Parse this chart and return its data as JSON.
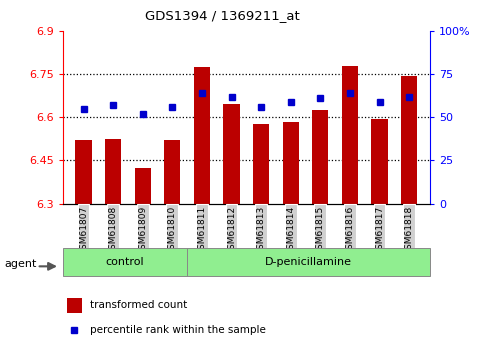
{
  "title": "GDS1394 / 1369211_at",
  "samples": [
    "GSM61807",
    "GSM61808",
    "GSM61809",
    "GSM61810",
    "GSM61811",
    "GSM61812",
    "GSM61813",
    "GSM61814",
    "GSM61815",
    "GSM61816",
    "GSM61817",
    "GSM61818"
  ],
  "bar_values": [
    6.52,
    6.525,
    6.425,
    6.52,
    6.775,
    6.645,
    6.575,
    6.585,
    6.625,
    6.78,
    6.595,
    6.745
  ],
  "dot_values": [
    55,
    57,
    52,
    56,
    64,
    62,
    56,
    59,
    61,
    64,
    59,
    62
  ],
  "bar_bottom": 6.3,
  "ylim_left": [
    6.3,
    6.9
  ],
  "ylim_right": [
    0,
    100
  ],
  "yticks_left": [
    6.3,
    6.45,
    6.6,
    6.75,
    6.9
  ],
  "yticks_right": [
    0,
    25,
    50,
    75,
    100
  ],
  "ytick_labels_left": [
    "6.3",
    "6.45",
    "6.6",
    "6.75",
    "6.9"
  ],
  "ytick_labels_right": [
    "0",
    "25",
    "50",
    "75",
    "100%"
  ],
  "hlines": [
    6.45,
    6.6,
    6.75
  ],
  "bar_color": "#bb0000",
  "dot_color": "#0000cc",
  "bg_plot": "#ffffff",
  "bg_figure": "#ffffff",
  "control_samples": 4,
  "control_label": "control",
  "treatment_label": "D-penicillamine",
  "agent_label": "agent",
  "legend_bar_label": "transformed count",
  "legend_dot_label": "percentile rank within the sample",
  "control_bg": "#90ee90",
  "treatment_bg": "#90ee90",
  "xticklabel_bg": "#d0d0d0"
}
